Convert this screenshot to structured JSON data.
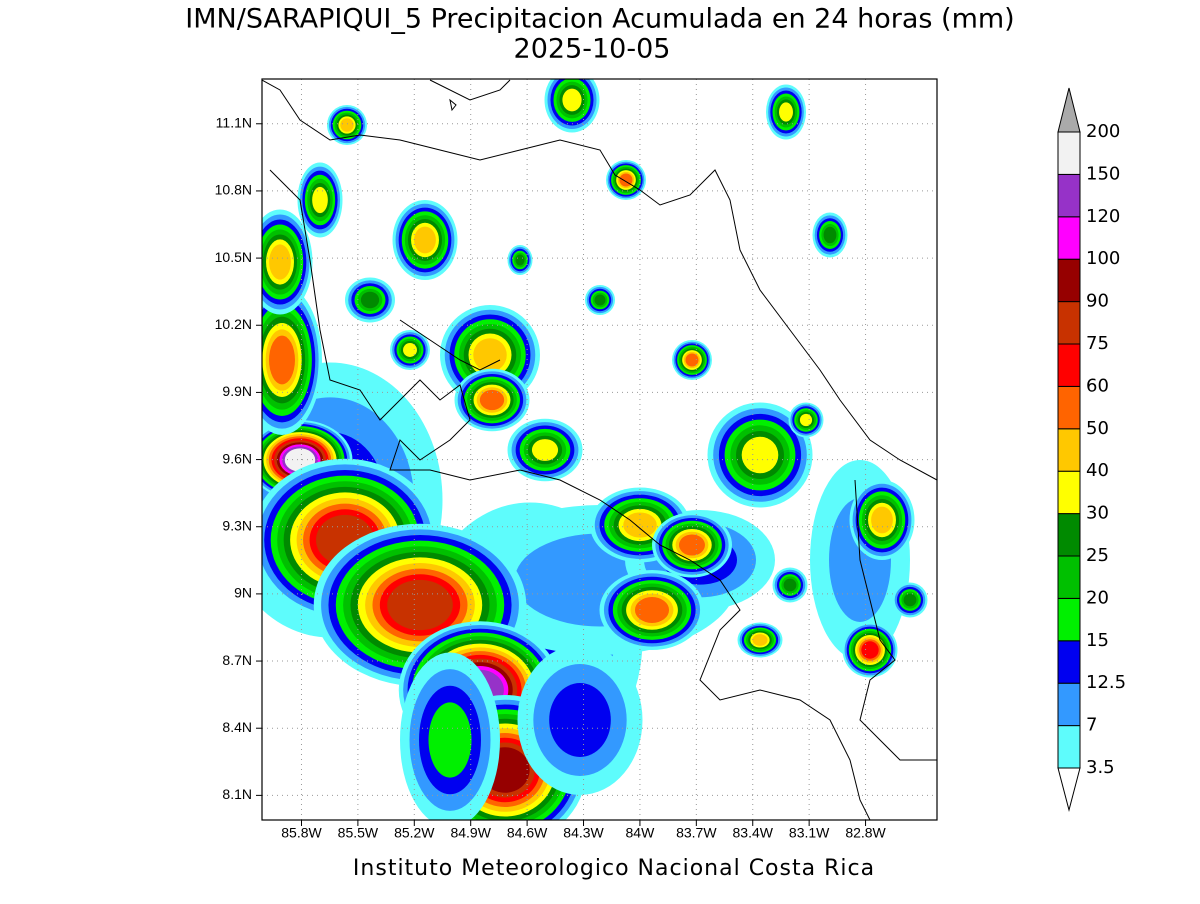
{
  "title": "IMN/SARAPIQUI_5 Precipitacion Acumulada en 24 horas (mm)",
  "date": "2025-10-05",
  "footer": "Instituto Meteorologico Nacional Costa Rica",
  "map": {
    "lonlim": [
      -86.01,
      -82.42
    ],
    "latlim": [
      7.99,
      11.3
    ],
    "lonticks": [
      {
        "value": -85.8,
        "label": "85.8W"
      },
      {
        "value": -85.5,
        "label": "85.5W"
      },
      {
        "value": -85.2,
        "label": "85.2W"
      },
      {
        "value": -84.9,
        "label": "84.9W"
      },
      {
        "value": -84.6,
        "label": "84.6W"
      },
      {
        "value": -84.3,
        "label": "84.3W"
      },
      {
        "value": -84.0,
        "label": "84W"
      },
      {
        "value": -83.7,
        "label": "83.7W"
      },
      {
        "value": -83.4,
        "label": "83.4W"
      },
      {
        "value": -83.1,
        "label": "83.1W"
      },
      {
        "value": -82.8,
        "label": "82.8W"
      }
    ],
    "latticks": [
      {
        "value": 8.1,
        "label": "8.1N"
      },
      {
        "value": 8.4,
        "label": "8.4N"
      },
      {
        "value": 8.7,
        "label": "8.7N"
      },
      {
        "value": 9.0,
        "label": "9N"
      },
      {
        "value": 9.3,
        "label": "9.3N"
      },
      {
        "value": 9.6,
        "label": "9.6N"
      },
      {
        "value": 9.9,
        "label": "9.9N"
      },
      {
        "value": 10.2,
        "label": "10.2N"
      },
      {
        "value": 10.5,
        "label": "10.5N"
      },
      {
        "value": 10.8,
        "label": "10.8N"
      },
      {
        "value": 11.1,
        "label": "11.1N"
      }
    ],
    "grid": true
  },
  "colorbar": {
    "levels": [
      3.5,
      7,
      12.5,
      15,
      20,
      25,
      30,
      40,
      50,
      60,
      75,
      90,
      100,
      120,
      150,
      200
    ],
    "colors": [
      "#ffffff",
      "#5efcfc",
      "#3399ff",
      "#0000f0",
      "#00f000",
      "#00c000",
      "#008a00",
      "#ffff00",
      "#ffc800",
      "#ff6400",
      "#ff0000",
      "#c83200",
      "#960000",
      "#ff00ff",
      "#9632c8",
      "#f2f2f2",
      "#aaaaaa"
    ]
  }
}
